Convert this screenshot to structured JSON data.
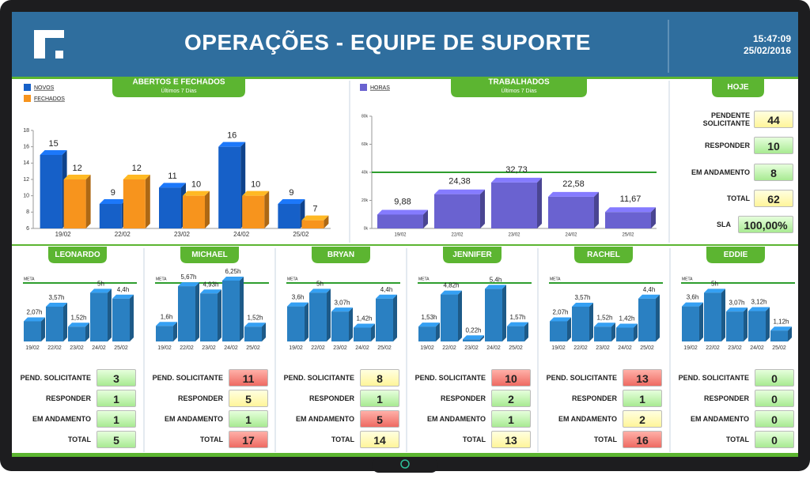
{
  "header": {
    "title": "OPERAÇÕES - EQUIPE DE SUPORTE",
    "time": "15:47:09",
    "date": "25/02/2016"
  },
  "chart_data": [
    {
      "type": "bar",
      "title": "ABERTOS E FECHADOS",
      "subtitle": "Últimos 7 Dias",
      "categories": [
        "19/02",
        "22/02",
        "23/02",
        "24/02",
        "25/02"
      ],
      "series": [
        {
          "name": "NOVOS",
          "color": "#1660c8",
          "values": [
            15,
            9,
            11,
            16,
            9
          ]
        },
        {
          "name": "FECHADOS",
          "color": "#f7941d",
          "values": [
            12,
            12,
            10,
            10,
            7
          ]
        }
      ],
      "ylim": [
        6,
        18
      ],
      "yticks": [
        6,
        8,
        10,
        12,
        14,
        16,
        18
      ]
    },
    {
      "type": "bar",
      "title": "TRABALHADOS",
      "subtitle": "Últimos 7 Dias",
      "categories": [
        "19/02",
        "22/02",
        "23/02",
        "24/02",
        "25/02"
      ],
      "series": [
        {
          "name": "HORAS",
          "color": "#6a62d0",
          "values": [
            9.88,
            24.38,
            32.73,
            22.58,
            11.67
          ],
          "value_labels": [
            "9,88",
            "24,38",
            "32,73",
            "22,58",
            "11,67"
          ]
        }
      ],
      "ylim": [
        0,
        80
      ],
      "yticks": [
        {
          "value": 0,
          "label": "0k"
        },
        {
          "value": 20,
          "label": "20k"
        },
        {
          "value": 40,
          "label": "40k"
        },
        {
          "value": 60,
          "label": "60k"
        },
        {
          "value": 80,
          "label": "80k"
        }
      ],
      "meta": 40,
      "meta_color": "#2e9e2e"
    },
    {
      "type": "bar",
      "title": "LEONARDO",
      "meta_label": "META",
      "meta": 6,
      "meta_color": "#2e9e2e",
      "color": "#2a80c2",
      "categories": [
        "19/02",
        "22/02",
        "23/02",
        "24/02",
        "25/02"
      ],
      "values": [
        2.07,
        3.57,
        1.52,
        5,
        4.4
      ],
      "value_labels": [
        "2,07h",
        "3,57h",
        "1,52h",
        "5h",
        "4,4h"
      ],
      "ylim": [
        0,
        6.6
      ],
      "stats": [
        {
          "value": 3,
          "level": "green"
        },
        {
          "value": 1,
          "level": "green"
        },
        {
          "value": 1,
          "level": "green"
        },
        {
          "value": 5,
          "level": "green"
        }
      ]
    },
    {
      "type": "bar",
      "title": "MICHAEL",
      "meta_label": "META",
      "meta": 6,
      "meta_color": "#2e9e2e",
      "color": "#2a80c2",
      "categories": [
        "19/02",
        "22/02",
        "23/02",
        "24/02",
        "25/02"
      ],
      "values": [
        1.6,
        5.67,
        4.93,
        6.25,
        1.52
      ],
      "value_labels": [
        "1,6h",
        "5,67h",
        "4,93h",
        "6,25h",
        "1,52h"
      ],
      "ylim": [
        0,
        6.6
      ],
      "stats": [
        {
          "value": 11,
          "level": "red"
        },
        {
          "value": 5,
          "level": "yellow"
        },
        {
          "value": 1,
          "level": "green"
        },
        {
          "value": 17,
          "level": "red"
        }
      ]
    },
    {
      "type": "bar",
      "title": "BRYAN",
      "meta_label": "META",
      "meta": 6,
      "meta_color": "#2e9e2e",
      "color": "#2a80c2",
      "categories": [
        "19/02",
        "22/02",
        "23/02",
        "24/02",
        "25/02"
      ],
      "values": [
        3.6,
        5,
        3.07,
        1.42,
        4.4
      ],
      "value_labels": [
        "3,6h",
        "5h",
        "3,07h",
        "1,42h",
        "4,4h"
      ],
      "ylim": [
        0,
        6.6
      ],
      "stats": [
        {
          "value": 8,
          "level": "yellow"
        },
        {
          "value": 1,
          "level": "green"
        },
        {
          "value": 5,
          "level": "red"
        },
        {
          "value": 14,
          "level": "yellow"
        }
      ]
    },
    {
      "type": "bar",
      "title": "JENNIFER",
      "meta_label": "META",
      "meta": 6,
      "meta_color": "#2e9e2e",
      "color": "#2a80c2",
      "categories": [
        "19/02",
        "22/02",
        "23/02",
        "24/02",
        "25/02"
      ],
      "values": [
        1.53,
        4.82,
        0.22,
        5.4,
        1.57
      ],
      "value_labels": [
        "1,53h",
        "4,82h",
        "0,22h",
        "5,4h",
        "1,57h"
      ],
      "ylim": [
        0,
        6.6
      ],
      "stats": [
        {
          "value": 10,
          "level": "red"
        },
        {
          "value": 2,
          "level": "green"
        },
        {
          "value": 1,
          "level": "green"
        },
        {
          "value": 13,
          "level": "yellow"
        }
      ]
    },
    {
      "type": "bar",
      "title": "RACHEL",
      "meta_label": "META",
      "meta": 6,
      "meta_color": "#2e9e2e",
      "color": "#2a80c2",
      "categories": [
        "19/02",
        "22/02",
        "23/02",
        "24/02",
        "25/02"
      ],
      "values": [
        2.07,
        3.57,
        1.52,
        1.42,
        4.4
      ],
      "value_labels": [
        "2,07h",
        "3,57h",
        "1,52h",
        "1,42h",
        "4,4h"
      ],
      "ylim": [
        0,
        6.6
      ],
      "stats": [
        {
          "value": 13,
          "level": "red"
        },
        {
          "value": 1,
          "level": "green"
        },
        {
          "value": 2,
          "level": "yellow"
        },
        {
          "value": 16,
          "level": "red"
        }
      ]
    },
    {
      "type": "bar",
      "title": "EDDIE",
      "meta_label": "META",
      "meta": 6,
      "meta_color": "#2e9e2e",
      "color": "#2a80c2",
      "categories": [
        "19/02",
        "22/02",
        "23/02",
        "24/02",
        "25/02"
      ],
      "values": [
        3.6,
        5,
        3.07,
        3.12,
        1.12
      ],
      "value_labels": [
        "3,6h",
        "5h",
        "3,07h",
        "3,12h",
        "1,12h"
      ],
      "ylim": [
        0,
        6.6
      ],
      "stats": [
        {
          "value": 0,
          "level": "green"
        },
        {
          "value": 0,
          "level": "green"
        },
        {
          "value": 0,
          "level": "green"
        },
        {
          "value": 0,
          "level": "green"
        }
      ]
    }
  ],
  "stat_labels": [
    "PEND. SOLICITANTE",
    "RESPONDER",
    "EM ANDAMENTO",
    "TOTAL"
  ],
  "hoje": {
    "title": "HOJE",
    "rows": [
      {
        "label": "PENDENTE SOLICITANTE",
        "value": 44,
        "level": "yellow"
      },
      {
        "label": "RESPONDER",
        "value": 10,
        "level": "green"
      },
      {
        "label": "EM ANDAMENTO",
        "value": 8,
        "level": "green"
      },
      {
        "label": "TOTAL",
        "value": 62,
        "level": "yellow"
      },
      {
        "label": "SLA",
        "value": 100,
        "value_label": "100,00%",
        "level": "green"
      }
    ]
  }
}
